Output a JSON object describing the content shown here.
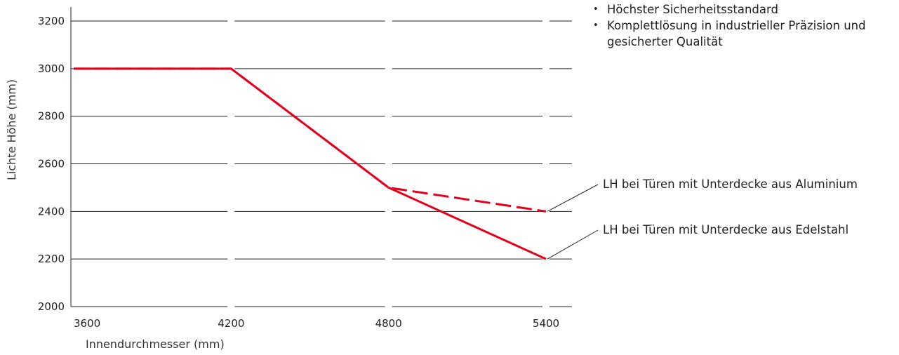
{
  "bullets": [
    "Höchster Sicherheitsstandard",
    "Komplettlösung in industrieller Präzision und gesicherter Qualität"
  ],
  "chart_data": {
    "type": "line",
    "title": "",
    "xlabel": "Innendurchmesser (mm)",
    "ylabel": "Lichte Höhe (mm)",
    "x_ticks": [
      3600,
      4200,
      4800,
      5400
    ],
    "y_ticks": [
      2000,
      2200,
      2400,
      2600,
      2800,
      3000,
      3200
    ],
    "xlim": [
      3600,
      5400
    ],
    "ylim": [
      2000,
      3200
    ],
    "grid": "horizontal",
    "series": [
      {
        "name": "LH bei Türen mit Unterdecke aus Aluminium",
        "style": "dashed",
        "color": "#e2001a",
        "x": [
          3600,
          4200,
          4800,
          5400
        ],
        "y": [
          3000,
          3000,
          2500,
          2400
        ]
      },
      {
        "name": "LH bei Türen mit Unterdecke aus Edelstahl",
        "style": "solid",
        "color": "#e2001a",
        "x": [
          3600,
          4200,
          4800,
          5400
        ],
        "y": [
          3000,
          3000,
          2500,
          2200
        ]
      }
    ]
  }
}
